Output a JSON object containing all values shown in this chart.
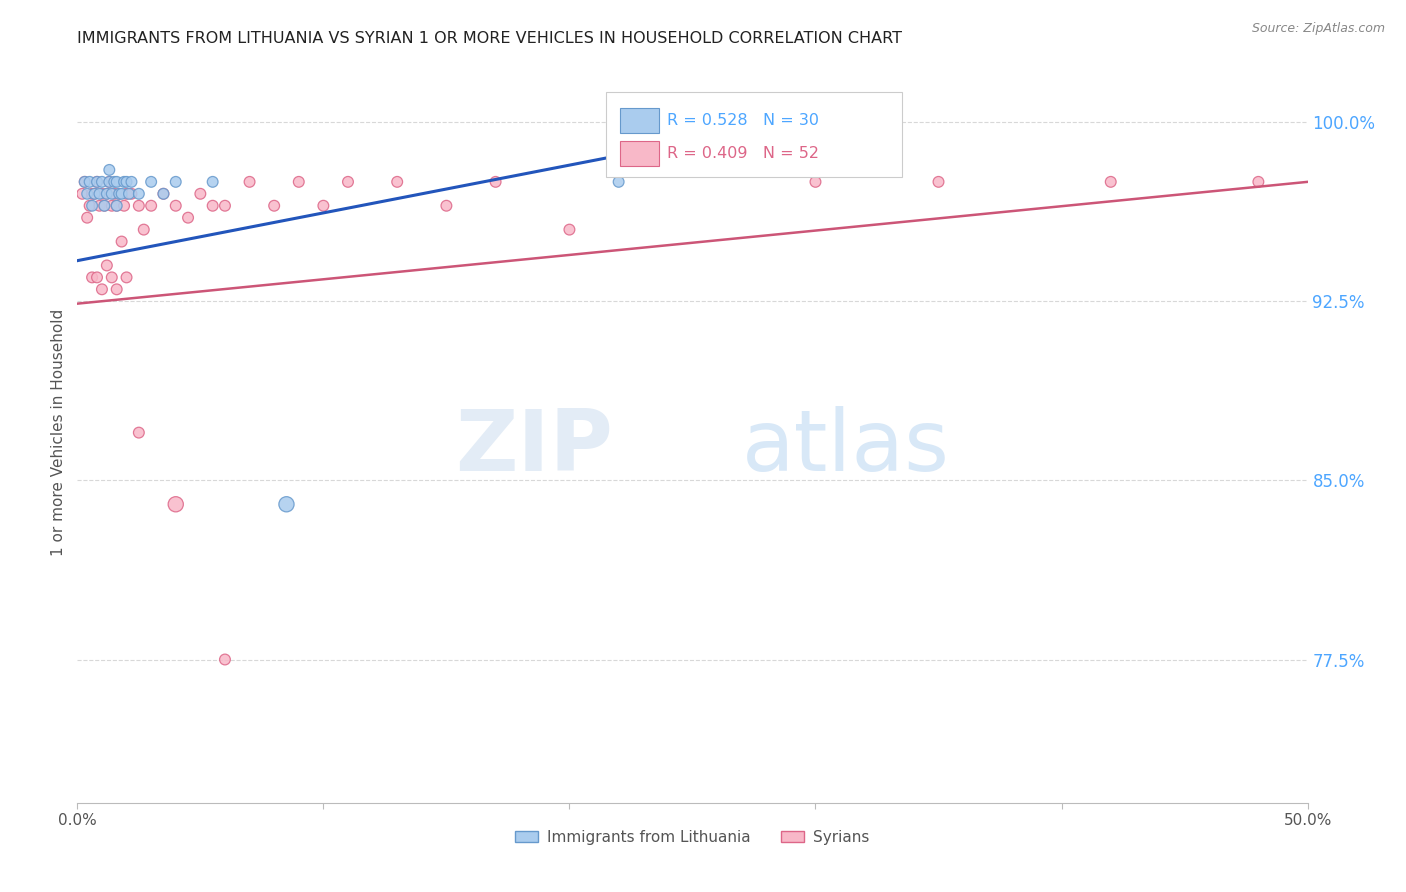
{
  "title": "IMMIGRANTS FROM LITHUANIA VS SYRIAN 1 OR MORE VEHICLES IN HOUSEHOLD CORRELATION CHART",
  "source": "Source: ZipAtlas.com",
  "ylabel": "1 or more Vehicles in Household",
  "ytick_labels": [
    "77.5%",
    "85.0%",
    "92.5%",
    "100.0%"
  ],
  "ytick_values": [
    0.775,
    0.85,
    0.925,
    1.0
  ],
  "xlim": [
    0.0,
    0.5
  ],
  "ylim": [
    0.715,
    1.025
  ],
  "watermark_zip": "ZIP",
  "watermark_atlas": "atlas",
  "background_color": "#ffffff",
  "grid_color": "#d8d8d8",
  "title_color": "#222222",
  "right_tick_color": "#4da6ff",
  "trendline_blue": "#2255bb",
  "trendline_pink": "#cc5577",
  "series_lithuania": {
    "color": "#aaccee",
    "edge_color": "#6699cc",
    "R": 0.528,
    "N": 30,
    "trend_x0": 0.0,
    "trend_y0": 0.942,
    "trend_x1": 0.28,
    "trend_y1": 0.998,
    "x": [
      0.003,
      0.004,
      0.005,
      0.006,
      0.007,
      0.008,
      0.009,
      0.01,
      0.011,
      0.012,
      0.013,
      0.013,
      0.014,
      0.015,
      0.016,
      0.016,
      0.017,
      0.018,
      0.019,
      0.02,
      0.021,
      0.022,
      0.025,
      0.03,
      0.035,
      0.04,
      0.055,
      0.085,
      0.22,
      0.28
    ],
    "y": [
      0.975,
      0.97,
      0.975,
      0.965,
      0.97,
      0.975,
      0.97,
      0.975,
      0.965,
      0.97,
      0.975,
      0.98,
      0.97,
      0.975,
      0.975,
      0.965,
      0.97,
      0.97,
      0.975,
      0.975,
      0.97,
      0.975,
      0.97,
      0.975,
      0.97,
      0.975,
      0.975,
      0.84,
      0.975,
      0.998
    ],
    "sizes": [
      60,
      60,
      60,
      60,
      60,
      60,
      60,
      60,
      60,
      60,
      60,
      60,
      60,
      60,
      60,
      60,
      60,
      60,
      60,
      60,
      60,
      60,
      60,
      60,
      60,
      60,
      60,
      120,
      60,
      60
    ]
  },
  "series_syrian": {
    "color": "#f8b8c8",
    "edge_color": "#dd6688",
    "R": 0.409,
    "N": 52,
    "trend_x0": 0.0,
    "trend_y0": 0.924,
    "trend_x1": 0.5,
    "trend_y1": 0.975,
    "x": [
      0.002,
      0.003,
      0.004,
      0.005,
      0.006,
      0.007,
      0.008,
      0.009,
      0.01,
      0.011,
      0.012,
      0.013,
      0.014,
      0.015,
      0.016,
      0.017,
      0.018,
      0.019,
      0.02,
      0.022,
      0.025,
      0.027,
      0.03,
      0.035,
      0.04,
      0.045,
      0.05,
      0.055,
      0.06,
      0.07,
      0.08,
      0.09,
      0.1,
      0.11,
      0.13,
      0.15,
      0.17,
      0.2,
      0.3,
      0.35,
      0.42,
      0.48,
      0.006,
      0.008,
      0.01,
      0.012,
      0.014,
      0.016,
      0.02,
      0.025,
      0.04,
      0.06
    ],
    "y": [
      0.97,
      0.975,
      0.96,
      0.965,
      0.97,
      0.97,
      0.975,
      0.965,
      0.97,
      0.965,
      0.97,
      0.975,
      0.965,
      0.97,
      0.965,
      0.97,
      0.95,
      0.965,
      0.97,
      0.97,
      0.965,
      0.955,
      0.965,
      0.97,
      0.965,
      0.96,
      0.97,
      0.965,
      0.965,
      0.975,
      0.965,
      0.975,
      0.965,
      0.975,
      0.975,
      0.965,
      0.975,
      0.955,
      0.975,
      0.975,
      0.975,
      0.975,
      0.935,
      0.935,
      0.93,
      0.94,
      0.935,
      0.93,
      0.935,
      0.87,
      0.84,
      0.775
    ],
    "sizes": [
      60,
      60,
      60,
      60,
      60,
      60,
      60,
      60,
      60,
      60,
      60,
      60,
      60,
      60,
      60,
      60,
      60,
      60,
      60,
      60,
      60,
      60,
      60,
      60,
      60,
      60,
      60,
      60,
      60,
      60,
      60,
      60,
      60,
      60,
      60,
      60,
      60,
      60,
      60,
      60,
      60,
      60,
      60,
      60,
      60,
      60,
      60,
      60,
      60,
      60,
      120,
      60
    ]
  }
}
